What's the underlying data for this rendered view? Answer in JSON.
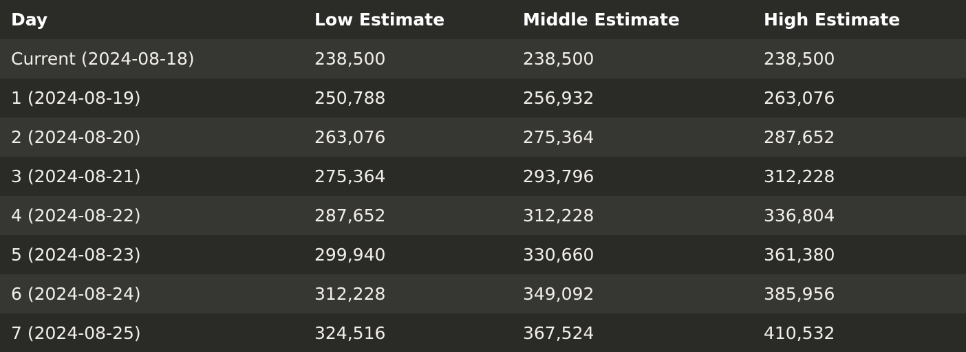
{
  "table": {
    "headers": [
      "Day",
      "Low Estimate",
      "Middle Estimate",
      "High Estimate"
    ],
    "rows": [
      [
        "Current (2024-08-18)",
        "238,500",
        "238,500",
        "238,500"
      ],
      [
        "1 (2024-08-19)",
        "250,788",
        "256,932",
        "263,076"
      ],
      [
        "2 (2024-08-20)",
        "263,076",
        "275,364",
        "287,652"
      ],
      [
        "3 (2024-08-21)",
        "275,364",
        "293,796",
        "312,228"
      ],
      [
        "4 (2024-08-22)",
        "287,652",
        "312,228",
        "336,804"
      ],
      [
        "5 (2024-08-23)",
        "299,940",
        "330,660",
        "361,380"
      ],
      [
        "6 (2024-08-24)",
        "312,228",
        "349,092",
        "385,956"
      ],
      [
        "7 (2024-08-25)",
        "324,516",
        "367,524",
        "410,532"
      ]
    ]
  }
}
